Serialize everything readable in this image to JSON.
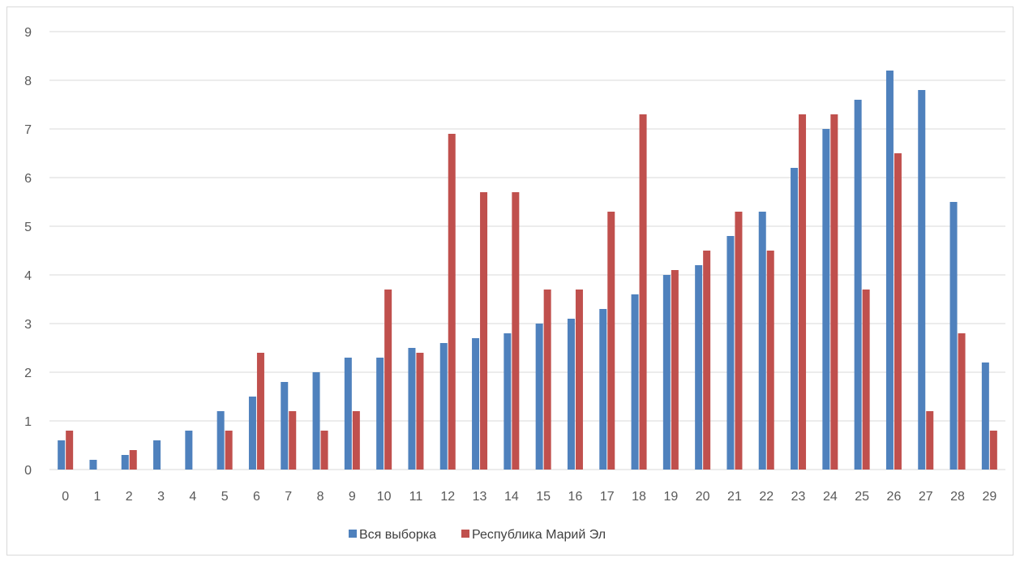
{
  "chart_data": {
    "type": "bar",
    "title": "",
    "xlabel": "",
    "ylabel": "",
    "ylim": [
      0,
      9
    ],
    "yticks": [
      0,
      1,
      2,
      3,
      4,
      5,
      6,
      7,
      8,
      9
    ],
    "grid": true,
    "legend_position": "bottom",
    "categories": [
      "0",
      "1",
      "2",
      "3",
      "4",
      "5",
      "6",
      "7",
      "8",
      "9",
      "10",
      "11",
      "12",
      "13",
      "14",
      "15",
      "16",
      "17",
      "18",
      "19",
      "20",
      "21",
      "22",
      "23",
      "24",
      "25",
      "26",
      "27",
      "28",
      "29"
    ],
    "series": [
      {
        "name": "Вся выборка",
        "color": "#4f81bd",
        "values": [
          0.6,
          0.2,
          0.3,
          0.6,
          0.8,
          1.2,
          1.5,
          1.8,
          2.0,
          2.3,
          2.3,
          2.5,
          2.6,
          2.7,
          2.8,
          3.0,
          3.1,
          3.3,
          3.6,
          4.0,
          4.2,
          4.8,
          5.3,
          6.2,
          7.0,
          7.6,
          8.2,
          7.8,
          5.5,
          2.2
        ]
      },
      {
        "name": "Республика Марий Эл",
        "color": "#c0504d",
        "values": [
          0.8,
          0,
          0.4,
          0,
          0,
          0.8,
          2.4,
          1.2,
          0.8,
          1.2,
          3.7,
          2.4,
          6.9,
          5.7,
          5.7,
          3.7,
          3.7,
          5.3,
          7.3,
          4.1,
          4.5,
          5.3,
          4.5,
          7.3,
          7.3,
          3.7,
          6.5,
          1.2,
          2.8,
          0.8
        ]
      }
    ]
  }
}
